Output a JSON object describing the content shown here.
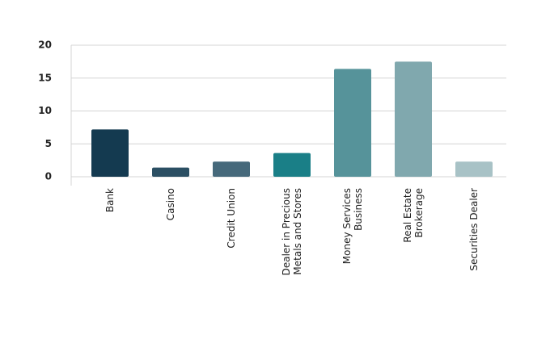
{
  "chart_data": {
    "type": "bar",
    "categories": [
      "Bank",
      "Casino",
      "Credit Union",
      "Dealer in Precious\nMetals and Stores",
      "Money Services\nBusiness",
      "Real Estate\nBrokerage",
      "Securities Dealer"
    ],
    "values": [
      7.2,
      1.4,
      2.3,
      3.6,
      16.4,
      17.5,
      2.3
    ],
    "colors": [
      "#143a50",
      "#2b4f63",
      "#46697b",
      "#1a7f87",
      "#56939a",
      "#80a8ae",
      "#a8c2c6"
    ],
    "ylim": [
      0,
      20
    ],
    "yticks": [
      0,
      5,
      10,
      15,
      20
    ],
    "grid": true
  }
}
